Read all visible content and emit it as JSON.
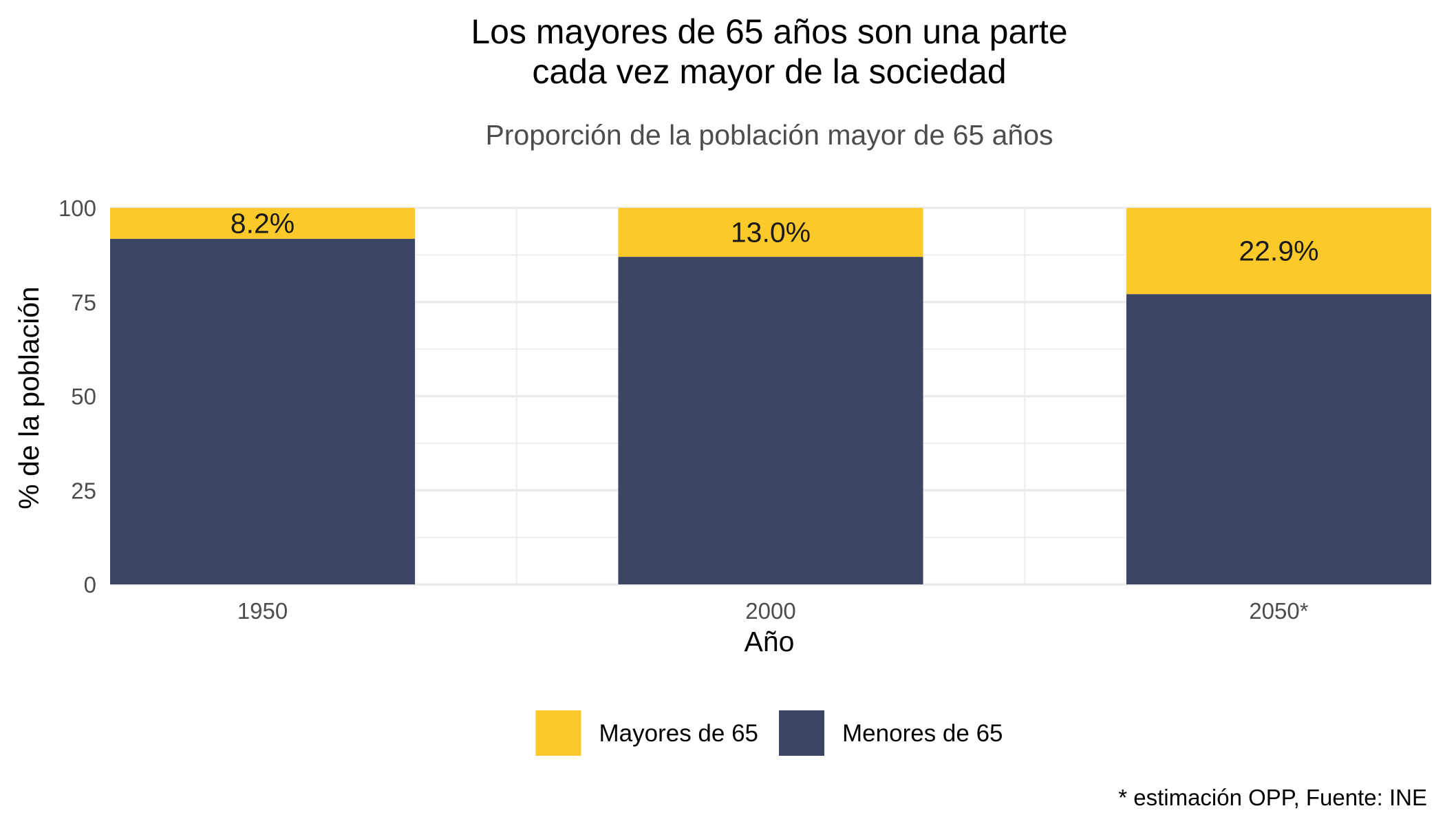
{
  "chart_data": {
    "type": "bar",
    "stacked": true,
    "title": [
      "Los mayores de 65 años son una parte",
      "cada vez mayor de la sociedad"
    ],
    "subtitle": "Proporción de la población mayor de 65 años",
    "xlabel": "Año",
    "ylabel": "% de la población",
    "categories": [
      "1950",
      "2000",
      "2050*"
    ],
    "ylim": [
      0,
      100
    ],
    "yticks": [
      "0",
      "25",
      "50",
      "75",
      "100"
    ],
    "series": [
      {
        "name": "Menores de 65",
        "values": [
          91.8,
          87.0,
          77.1
        ],
        "color": "#3b4662"
      },
      {
        "name": "Mayores de 65",
        "values": [
          8.2,
          13.0,
          22.9
        ],
        "color": "#fcc92b"
      }
    ],
    "data_labels": [
      "8.2%",
      "13.0%",
      "22.9%"
    ],
    "legend": {
      "position": "bottom",
      "items": [
        {
          "label": "Mayores de 65",
          "color": "#fcc92b"
        },
        {
          "label": "Menores de 65",
          "color": "#3b4662"
        }
      ]
    },
    "caption": "* estimación OPP, Fuente: INE",
    "grid": true,
    "grid_color": "#ebebeb"
  }
}
